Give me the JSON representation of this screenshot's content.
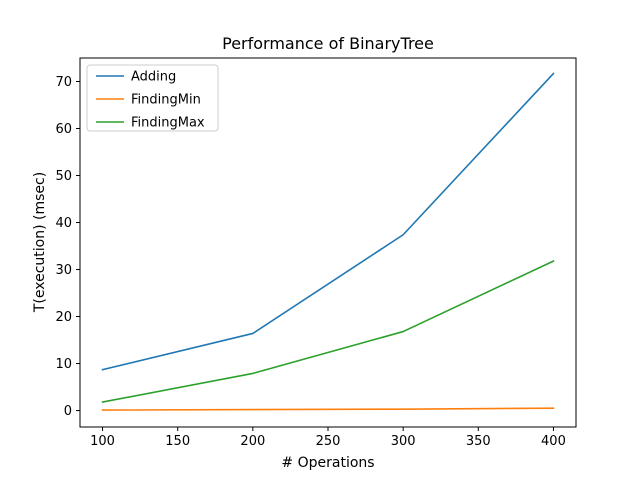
{
  "chart_data": {
    "type": "line",
    "title": "Performance of BinaryTree",
    "xlabel": "# Operations",
    "ylabel": "T(execution) (msec)",
    "x": [
      100,
      200,
      300,
      400
    ],
    "xlim": [
      85,
      415
    ],
    "ylim": [
      -3.5,
      75
    ],
    "xticks": [
      100,
      150,
      200,
      250,
      300,
      350,
      400
    ],
    "yticks": [
      0,
      10,
      20,
      30,
      40,
      50,
      60,
      70
    ],
    "grid": false,
    "legend_position": "top-left",
    "series": [
      {
        "name": "Adding",
        "color": "#1f77b4",
        "values": [
          8.7,
          16.4,
          37.4,
          71.7
        ]
      },
      {
        "name": "FindingMin",
        "color": "#ff7f0e",
        "values": [
          0.1,
          0.2,
          0.3,
          0.5
        ]
      },
      {
        "name": "FindingMax",
        "color": "#2ca02c",
        "values": [
          1.8,
          7.9,
          16.8,
          31.8
        ]
      }
    ]
  }
}
